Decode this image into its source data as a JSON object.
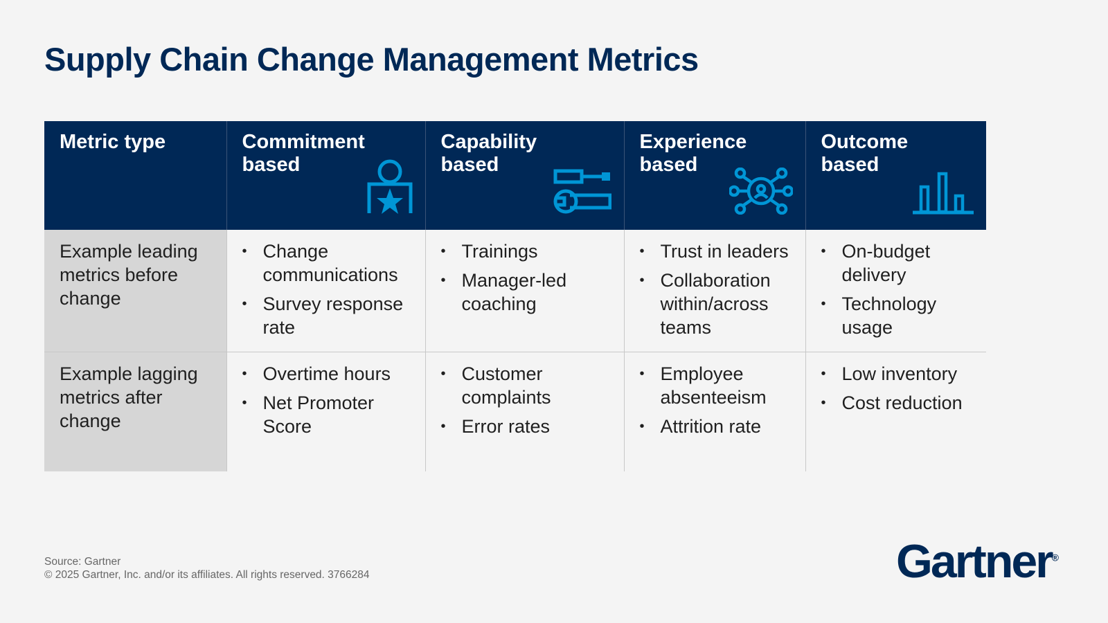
{
  "title": "Supply Chain Change Management Metrics",
  "colors": {
    "header_bg": "#002856",
    "icon": "#0096d6",
    "row_head_bg": "#d6d6d6",
    "background": "#f4f4f4"
  },
  "table": {
    "headers": [
      {
        "label": "Metric type",
        "icon": ""
      },
      {
        "label": "Commitment based",
        "icon": "person-star-icon"
      },
      {
        "label": "Capability based",
        "icon": "tools-icon"
      },
      {
        "label": "Experience based",
        "icon": "network-person-icon"
      },
      {
        "label": "Outcome based",
        "icon": "bar-chart-icon"
      }
    ],
    "rows": [
      {
        "label": "Example leading metrics before change",
        "cells": [
          [
            "Change communications",
            "Survey response rate"
          ],
          [
            "Trainings",
            "Manager-led coaching"
          ],
          [
            "Trust in leaders",
            "Collaboration within/across teams"
          ],
          [
            "On-budget delivery",
            "Technology usage"
          ]
        ]
      },
      {
        "label": "Example lagging metrics after change",
        "cells": [
          [
            "Overtime hours",
            "Net Promoter Score"
          ],
          [
            "Customer complaints",
            "Error rates"
          ],
          [
            "Employee absenteeism",
            "Attrition rate"
          ],
          [
            "Low inventory",
            "Cost reduction"
          ]
        ]
      }
    ]
  },
  "footer": {
    "source": "Source: Gartner",
    "copyright": "© 2025 Gartner, Inc. and/or its affiliates. All rights reserved. 3766284"
  },
  "logo": "Gartner"
}
